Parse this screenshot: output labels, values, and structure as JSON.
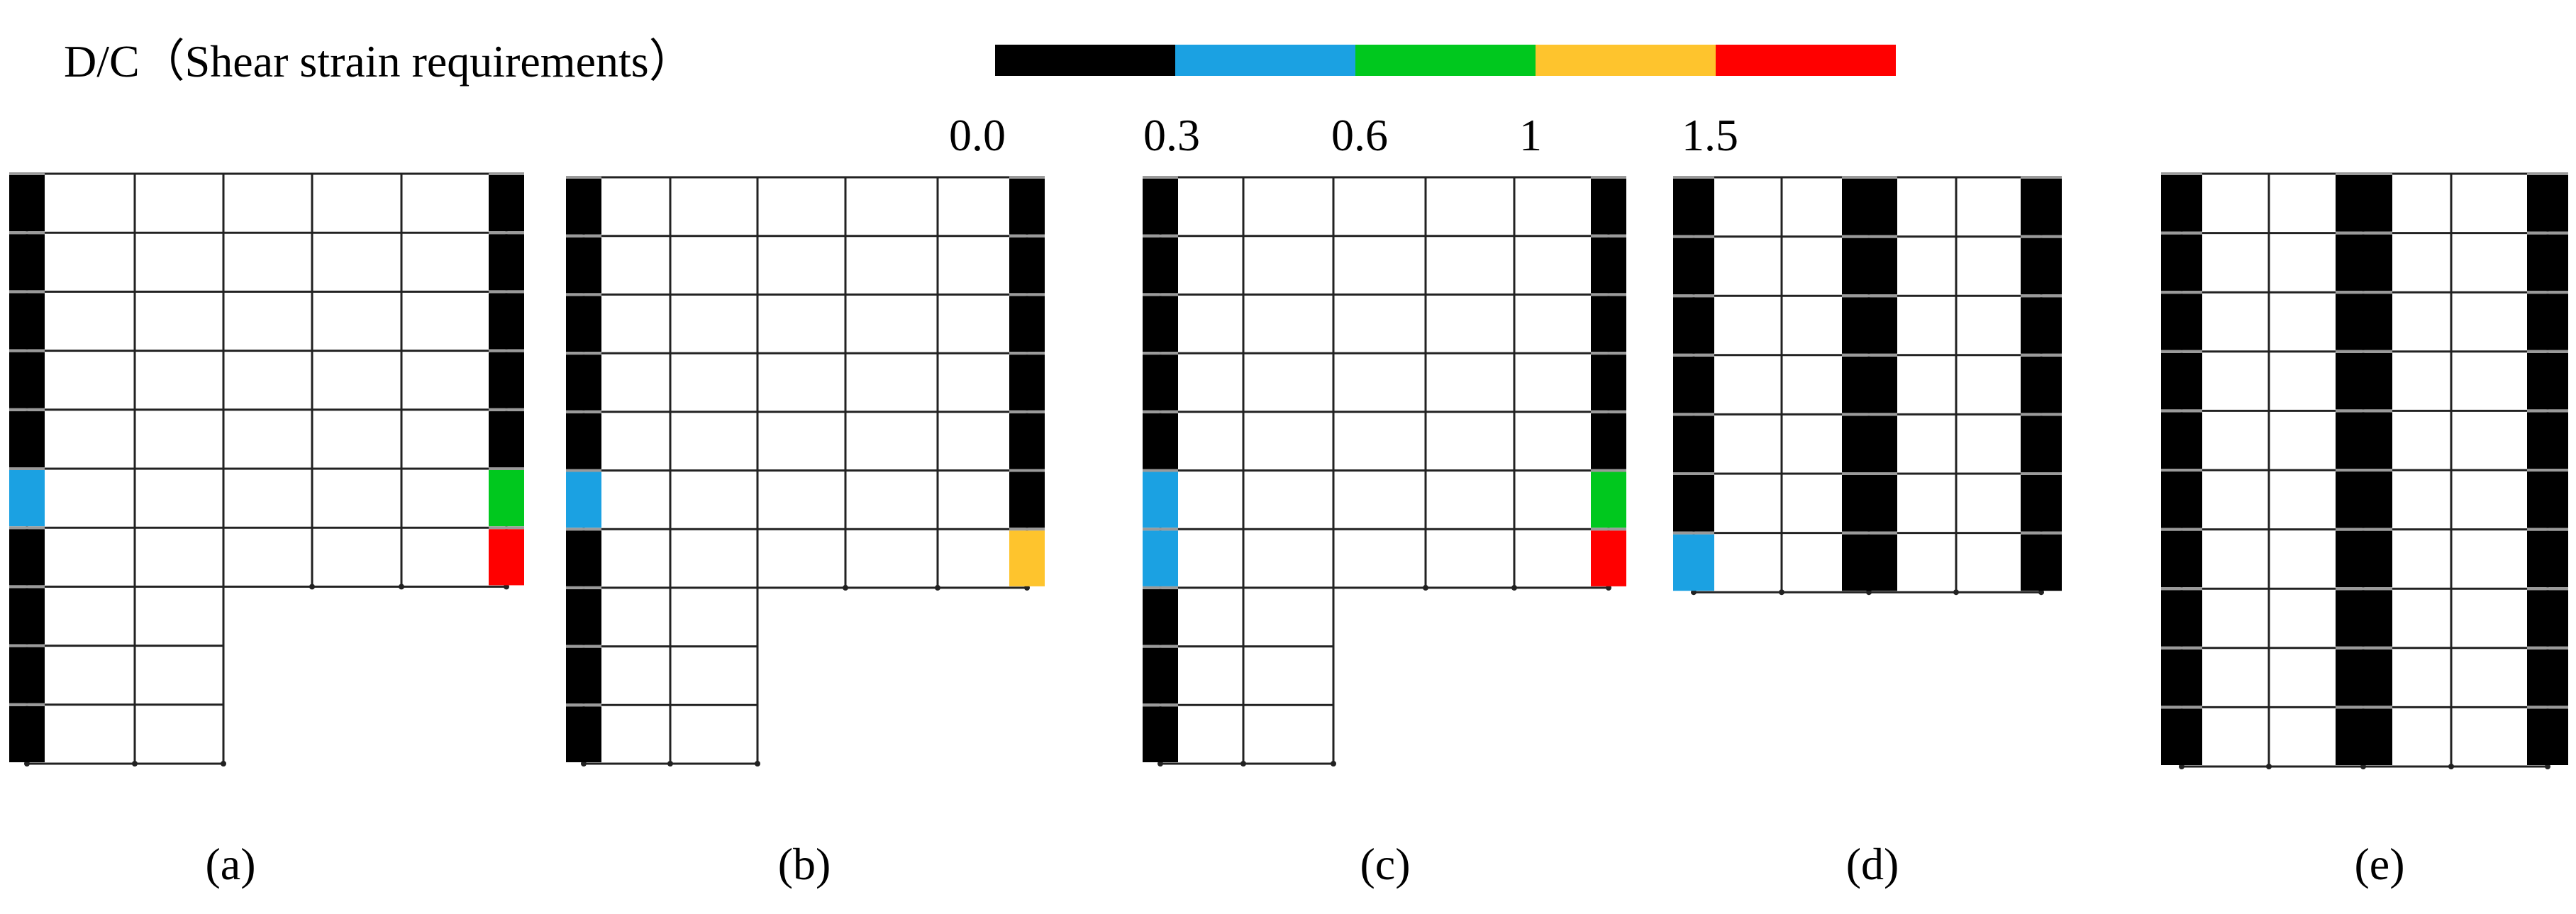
{
  "legend": {
    "title": "D/C（Shear strain requirements）",
    "ticks": [
      "0.0",
      "0.3",
      "0.6",
      "1",
      "1.5"
    ],
    "bins": [
      {
        "color": "#000000"
      },
      {
        "color": "#1ba1e2"
      },
      {
        "color": "#00c81e"
      },
      {
        "color": "#fec42d"
      },
      {
        "color": "#ff0000"
      }
    ]
  },
  "panels": [
    {
      "label": "(a)",
      "letter": "a",
      "stories_total": 10,
      "bays": 5,
      "setback_bays": 2,
      "setback_stories": 6,
      "walls": [
        {
          "side": "left",
          "stories": 10,
          "colors": [
            "#000000",
            "#000000",
            "#000000",
            "#000000",
            "#000000",
            "#1ba1e2",
            "#000000",
            "#000000",
            "#000000",
            "#000000"
          ]
        },
        {
          "side": "right",
          "stories": 7,
          "colors": [
            "#000000",
            "#000000",
            "#000000",
            "#000000",
            "#000000",
            "#00c81e",
            "#ff0000"
          ]
        }
      ]
    },
    {
      "label": "(b)",
      "letter": "b",
      "stories_total": 10,
      "bays": 5,
      "setback_bays": 2,
      "setback_stories": 6,
      "walls": [
        {
          "side": "left",
          "stories": 10,
          "colors": [
            "#000000",
            "#000000",
            "#000000",
            "#000000",
            "#000000",
            "#1ba1e2",
            "#000000",
            "#000000",
            "#000000",
            "#000000"
          ]
        },
        {
          "side": "right",
          "stories": 7,
          "colors": [
            "#000000",
            "#000000",
            "#000000",
            "#000000",
            "#000000",
            "#000000",
            "#fec42d"
          ]
        }
      ]
    },
    {
      "label": "(c)",
      "letter": "c",
      "stories_total": 10,
      "bays": 5,
      "setback_bays": 2,
      "setback_stories": 6,
      "walls": [
        {
          "side": "left",
          "stories": 10,
          "colors": [
            "#000000",
            "#000000",
            "#000000",
            "#000000",
            "#000000",
            "#1ba1e2",
            "#1ba1e2",
            "#000000",
            "#000000",
            "#000000"
          ]
        },
        {
          "side": "right",
          "stories": 7,
          "colors": [
            "#000000",
            "#000000",
            "#000000",
            "#000000",
            "#000000",
            "#00c81e",
            "#ff0000"
          ]
        }
      ]
    },
    {
      "label": "(d)",
      "letter": "d",
      "stories_total": 7,
      "bays": 6,
      "walls": [
        {
          "side": "left",
          "stories": 7,
          "colors": [
            "#000000",
            "#000000",
            "#000000",
            "#000000",
            "#000000",
            "#000000",
            "#1ba1e2"
          ]
        },
        {
          "side": "center",
          "stories": 7,
          "colors": [
            "#000000",
            "#000000",
            "#000000",
            "#000000",
            "#000000",
            "#000000",
            "#000000"
          ]
        },
        {
          "side": "right",
          "stories": 7,
          "colors": [
            "#000000",
            "#000000",
            "#000000",
            "#000000",
            "#000000",
            "#000000",
            "#000000"
          ]
        }
      ]
    },
    {
      "label": "(e)",
      "letter": "e",
      "stories_total": 10,
      "bays": 6,
      "walls": [
        {
          "side": "left",
          "stories": 10,
          "colors": [
            "#000000",
            "#000000",
            "#000000",
            "#000000",
            "#000000",
            "#000000",
            "#000000",
            "#000000",
            "#000000",
            "#000000"
          ]
        },
        {
          "side": "center",
          "stories": 10,
          "colors": [
            "#000000",
            "#000000",
            "#000000",
            "#000000",
            "#000000",
            "#000000",
            "#000000",
            "#000000",
            "#000000",
            "#000000"
          ]
        },
        {
          "side": "right",
          "stories": 10,
          "colors": [
            "#000000",
            "#000000",
            "#000000",
            "#000000",
            "#000000",
            "#000000",
            "#000000",
            "#000000",
            "#000000",
            "#000000"
          ]
        }
      ]
    }
  ]
}
